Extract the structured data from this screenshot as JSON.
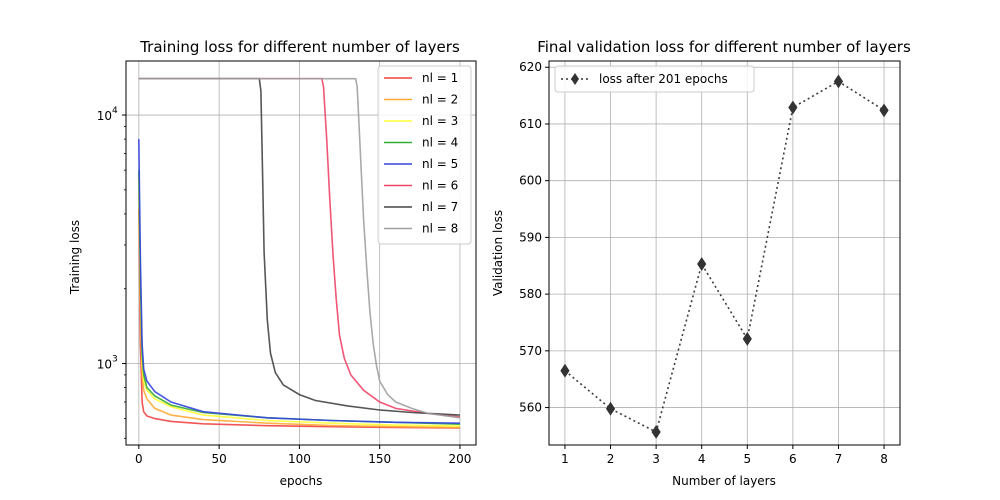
{
  "chart_data": [
    {
      "type": "line",
      "title": "Training loss for different number of layers",
      "xlabel": "epochs",
      "ylabel": "Training loss",
      "yscale": "log",
      "xlim": [
        -8,
        210
      ],
      "ylim": [
        470,
        16500
      ],
      "xticks": [
        0,
        50,
        100,
        150,
        200
      ],
      "yticks": [
        {
          "value": 1000,
          "label": "10",
          "exp": "3"
        },
        {
          "value": 10000,
          "label": "10",
          "exp": "4"
        }
      ],
      "grid": true,
      "legend_position": "top-right",
      "series": [
        {
          "name": "nl = 1",
          "color": "#ee4444",
          "x": [
            0,
            1,
            2,
            3,
            5,
            10,
            20,
            40,
            80,
            120,
            160,
            200
          ],
          "y": [
            4200,
            1200,
            700,
            640,
            615,
            600,
            585,
            572,
            562,
            557,
            553,
            550
          ]
        },
        {
          "name": "nl = 2",
          "color": "#ffaa33",
          "x": [
            0,
            1,
            2,
            3,
            5,
            10,
            20,
            40,
            80,
            120,
            160,
            200
          ],
          "y": [
            5000,
            1800,
            900,
            780,
            720,
            660,
            620,
            595,
            575,
            563,
            557,
            553
          ]
        },
        {
          "name": "nl = 3",
          "color": "#ffff33",
          "x": [
            0,
            1,
            2,
            3,
            5,
            10,
            20,
            40,
            80,
            120,
            160,
            200
          ],
          "y": [
            5500,
            2000,
            1000,
            850,
            780,
            720,
            670,
            620,
            590,
            575,
            565,
            560
          ]
        },
        {
          "name": "nl = 4",
          "color": "#33aa33",
          "x": [
            0,
            1,
            2,
            3,
            5,
            10,
            20,
            40,
            80,
            120,
            160,
            200
          ],
          "y": [
            6000,
            2200,
            1100,
            900,
            800,
            740,
            680,
            635,
            605,
            590,
            580,
            570
          ]
        },
        {
          "name": "nl = 5",
          "color": "#3344dd",
          "x": [
            0,
            1,
            2,
            3,
            5,
            10,
            20,
            40,
            80,
            120,
            160,
            200
          ],
          "y": [
            8000,
            2600,
            1200,
            950,
            850,
            770,
            700,
            640,
            605,
            590,
            580,
            575
          ]
        },
        {
          "name": "nl = 6",
          "color": "#ee4466",
          "x": [
            0,
            114,
            115,
            117,
            119,
            121,
            123,
            125,
            128,
            132,
            140,
            150,
            160,
            180,
            200
          ],
          "y": [
            14000,
            14000,
            13000,
            8000,
            4500,
            2700,
            1800,
            1300,
            1050,
            900,
            780,
            700,
            660,
            630,
            610
          ]
        },
        {
          "name": "nl = 7",
          "color": "#444444",
          "x": [
            0,
            75,
            76,
            77,
            78,
            80,
            82,
            85,
            90,
            100,
            110,
            130,
            150,
            170,
            200
          ],
          "y": [
            14000,
            14000,
            12500,
            6000,
            2800,
            1500,
            1100,
            920,
            820,
            750,
            710,
            675,
            650,
            635,
            620
          ]
        },
        {
          "name": "nl = 8",
          "color": "#a0a0a0",
          "x": [
            0,
            135,
            136,
            138,
            140,
            142,
            144,
            146,
            148,
            150,
            155,
            160,
            170,
            180,
            200
          ],
          "y": [
            14000,
            14000,
            13000,
            7000,
            3800,
            2400,
            1600,
            1200,
            980,
            850,
            750,
            700,
            660,
            630,
            605
          ]
        }
      ]
    },
    {
      "type": "line",
      "title": "Final validation loss for different number of layers",
      "xlabel": "Number of layers",
      "ylabel": "Validation loss",
      "xlim": [
        0.65,
        8.35
      ],
      "ylim": [
        553.4,
        621.1
      ],
      "xticks": [
        1,
        2,
        3,
        4,
        5,
        6,
        7,
        8
      ],
      "yticks": [
        560,
        570,
        580,
        590,
        600,
        610,
        620
      ],
      "grid": true,
      "legend_position": "top-left",
      "series": [
        {
          "name": "loss after 201 epochs",
          "color": "#333333",
          "marker": "thin_diamond",
          "linestyle": "dotted",
          "x": [
            1,
            2,
            3,
            4,
            5,
            6,
            7,
            8
          ],
          "y": [
            566.5,
            559.8,
            555.7,
            585.3,
            572.1,
            612.9,
            617.5,
            612.4
          ]
        }
      ]
    }
  ]
}
